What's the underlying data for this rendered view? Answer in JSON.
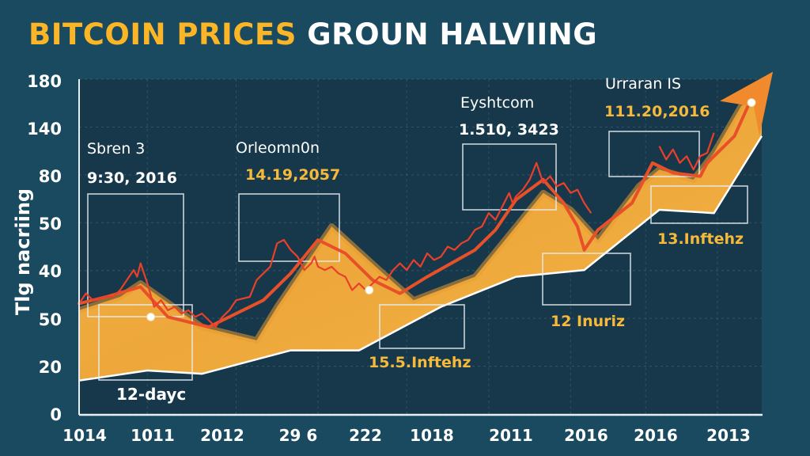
{
  "title": {
    "part1": "BITCOIN PRICES",
    "part2": "GROUN HALVIING"
  },
  "colors": {
    "background": "#1a4a60",
    "plot_background": "#17384a",
    "title_accent": "#fbb526",
    "area_fill": "#f4b042",
    "area_fill_dark": "#e89a30",
    "price_line": "#e8402a",
    "trend_line": "#e8502a",
    "arrow": "#f08a2c",
    "annotation_gold": "#f6b93b",
    "text": "#ffffff"
  },
  "chart_data": {
    "type": "area",
    "title": "BITCOIN PRICES GROUN HALVIING",
    "xlabel": "",
    "ylabel": "Tlg nacriing",
    "x_tick_labels": [
      "1014",
      "1011",
      "2012",
      "29 6",
      "222",
      "1018",
      "2011",
      "2016",
      "2016",
      "2013"
    ],
    "y_tick_labels": [
      "180",
      "140",
      "80",
      "50",
      "40",
      "50",
      "20",
      "0"
    ],
    "y_axis_note": "tick labels are evenly spaced; values below are expressed as fraction of plot height (0 = bottom, 1 = top)",
    "grid": true,
    "series": [
      {
        "name": "price-upper-band",
        "kind": "area-top",
        "x": [
          0,
          0.06,
          0.09,
          0.18,
          0.26,
          0.29,
          0.37,
          0.44,
          0.49,
          0.58,
          0.62,
          0.68,
          0.72,
          0.76,
          0.82,
          0.85,
          0.9,
          0.93,
          0.97,
          1.0
        ],
        "y": [
          0.31,
          0.35,
          0.39,
          0.26,
          0.22,
          0.32,
          0.56,
          0.43,
          0.34,
          0.41,
          0.51,
          0.66,
          0.61,
          0.52,
          0.68,
          0.73,
          0.7,
          0.78,
          0.92,
          0.96
        ]
      },
      {
        "name": "price-lower-band",
        "kind": "area-bottom",
        "x": [
          0,
          0.1,
          0.18,
          0.31,
          0.41,
          0.53,
          0.64,
          0.74,
          0.85,
          0.93,
          1.0
        ],
        "y": [
          0.1,
          0.13,
          0.12,
          0.19,
          0.19,
          0.32,
          0.41,
          0.43,
          0.61,
          0.6,
          0.83
        ]
      },
      {
        "name": "price-volatile",
        "kind": "line",
        "x": [
          0,
          0.01,
          0.02,
          0.04,
          0.05,
          0.06,
          0.07,
          0.08,
          0.085,
          0.09,
          0.1,
          0.11,
          0.12,
          0.13,
          0.14,
          0.15,
          0.16,
          0.17,
          0.18,
          0.19,
          0.2,
          0.21,
          0.22,
          0.23,
          0.25,
          0.26,
          0.27,
          0.28,
          0.29,
          0.3,
          0.31,
          0.32,
          0.33,
          0.34,
          0.345,
          0.35,
          0.36,
          0.37,
          0.38,
          0.39,
          0.4,
          0.41,
          0.42,
          0.43,
          0.44,
          0.45,
          0.46,
          0.47,
          0.48,
          0.49,
          0.5,
          0.51,
          0.52,
          0.53,
          0.54,
          0.55,
          0.56,
          0.57,
          0.58,
          0.59,
          0.6,
          0.61,
          0.62,
          0.63,
          0.635,
          0.64,
          0.65,
          0.66,
          0.67,
          0.68,
          0.69,
          0.7,
          0.71,
          0.72,
          0.73,
          0.74,
          0.75
        ],
        "y": [
          0.33,
          0.36,
          0.34,
          0.35,
          0.35,
          0.37,
          0.4,
          0.43,
          0.41,
          0.45,
          0.39,
          0.32,
          0.34,
          0.31,
          0.32,
          0.3,
          0.31,
          0.29,
          0.3,
          0.28,
          0.26,
          0.29,
          0.31,
          0.34,
          0.35,
          0.4,
          0.42,
          0.44,
          0.51,
          0.52,
          0.49,
          0.47,
          0.43,
          0.45,
          0.47,
          0.44,
          0.43,
          0.44,
          0.42,
          0.41,
          0.37,
          0.39,
          0.37,
          0.39,
          0.41,
          0.4,
          0.43,
          0.45,
          0.43,
          0.46,
          0.44,
          0.48,
          0.46,
          0.47,
          0.5,
          0.49,
          0.51,
          0.52,
          0.55,
          0.56,
          0.6,
          0.58,
          0.62,
          0.66,
          0.63,
          0.65,
          0.67,
          0.7,
          0.75,
          0.69,
          0.71,
          0.68,
          0.69,
          0.66,
          0.67,
          0.63,
          0.6
        ],
        "tail_x": [
          0.85,
          0.86,
          0.87,
          0.88,
          0.89,
          0.9,
          0.91,
          0.92,
          0.93
        ],
        "tail_y": [
          0.8,
          0.76,
          0.79,
          0.75,
          0.77,
          0.73,
          0.77,
          0.78,
          0.84
        ]
      },
      {
        "name": "price-trend",
        "kind": "line",
        "x": [
          0,
          0.04,
          0.09,
          0.13,
          0.19,
          0.27,
          0.31,
          0.35,
          0.39,
          0.43,
          0.47,
          0.51,
          0.58,
          0.61,
          0.64,
          0.68,
          0.71,
          0.73,
          0.74,
          0.76,
          0.81,
          0.84,
          0.87,
          0.91,
          0.92,
          0.96,
          0.98
        ],
        "y": [
          0.33,
          0.35,
          0.38,
          0.29,
          0.26,
          0.34,
          0.42,
          0.52,
          0.48,
          0.4,
          0.36,
          0.41,
          0.49,
          0.55,
          0.64,
          0.7,
          0.63,
          0.56,
          0.49,
          0.55,
          0.63,
          0.75,
          0.72,
          0.71,
          0.75,
          0.83,
          0.92
        ]
      }
    ],
    "markers": [
      {
        "x": 0.105,
        "y": 0.29
      },
      {
        "x": 0.425,
        "y": 0.37
      },
      {
        "x": 0.985,
        "y": 0.93
      }
    ],
    "arrow": {
      "x": 0.985,
      "y": 0.93,
      "direction": "up-right"
    },
    "annotations": [
      {
        "label": "Sbren 3",
        "date": "9:30, 2016",
        "date_color": "white"
      },
      {
        "label": "Orleomn0n",
        "date": "14.19,2057",
        "date_color": "gold"
      },
      {
        "label": "Eyshtcom",
        "date": "1.510, 3423",
        "date_color": "white"
      },
      {
        "label": "Urraran IS",
        "date": "111.20,2016",
        "date_color": "gold"
      },
      {
        "label": "12-dayc",
        "color": "white"
      },
      {
        "label": "15.5.Inftehz",
        "color": "gold"
      },
      {
        "label": "12 Inuriz",
        "color": "gold"
      },
      {
        "label": "13.Inftehz",
        "color": "gold"
      }
    ]
  }
}
